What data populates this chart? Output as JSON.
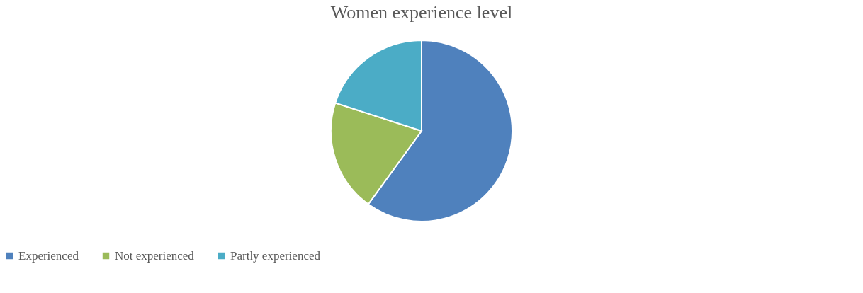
{
  "chart_data": {
    "type": "pie",
    "title": "Women experience level",
    "categories": [
      "Experienced",
      "Not experienced",
      "Partly experienced"
    ],
    "values": [
      60,
      20,
      20
    ],
    "colors": [
      "#4f81bd",
      "#9bbb59",
      "#4bacc6"
    ],
    "legend": "bottom"
  }
}
